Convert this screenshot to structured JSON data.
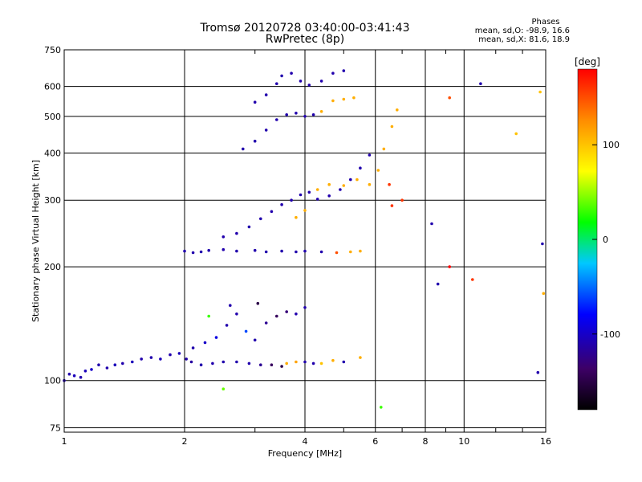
{
  "chart_data": {
    "type": "scatter",
    "title": "Tromsø 20120728 03:40:00-03:41:43",
    "subtitle": "RwPretec (8p)",
    "xlabel": "Frequency [MHz]",
    "ylabel": "Stationary phase Virtual Height [km]",
    "xscale": "log",
    "yscale": "log",
    "xlim": [
      1,
      16
    ],
    "ylim": [
      73,
      750
    ],
    "x_ticks": [
      1,
      2,
      4,
      6,
      8,
      10,
      16
    ],
    "x_minor_ticks": [
      3,
      5,
      7,
      9,
      12,
      14
    ],
    "y_ticks": [
      75,
      100,
      200,
      300,
      400,
      500,
      600,
      750
    ],
    "grid": true,
    "colorbar": {
      "label": "[deg]",
      "min": -180,
      "max": 180,
      "ticks": [
        100,
        0,
        -100
      ],
      "colors": [
        "#000000",
        "#3d0066",
        "#0000ff",
        "#00c8ff",
        "#00ff00",
        "#ffff00",
        "#ff8c00",
        "#ff0000"
      ]
    },
    "phases": {
      "heading": "Phases",
      "line_o": "mean, sd,O: -98.9, 16.6",
      "line_x": "mean, sd,X:  81.6, 18.9"
    },
    "series": [
      {
        "points": [
          [
            1.0,
            100,
            -110
          ],
          [
            1.03,
            104,
            -110
          ],
          [
            1.06,
            103,
            -105
          ],
          [
            1.1,
            102,
            -110
          ],
          [
            1.13,
            106,
            -105
          ],
          [
            1.17,
            107,
            -100
          ],
          [
            1.22,
            110,
            -110
          ],
          [
            1.28,
            108,
            -110
          ],
          [
            1.34,
            110,
            -105
          ],
          [
            1.4,
            111,
            -110
          ],
          [
            1.48,
            112,
            -105
          ],
          [
            1.56,
            114,
            -110
          ],
          [
            1.65,
            115,
            -110
          ],
          [
            1.74,
            114,
            -105
          ],
          [
            1.84,
            117,
            -110
          ],
          [
            1.94,
            118,
            -105
          ],
          [
            2.02,
            114,
            -110
          ],
          [
            2.08,
            112,
            -115
          ],
          [
            2.2,
            110,
            -110
          ],
          [
            2.35,
            111,
            -110
          ],
          [
            2.5,
            112,
            -110
          ],
          [
            2.7,
            112,
            -110
          ],
          [
            2.9,
            111,
            -110
          ],
          [
            3.1,
            110,
            -120
          ],
          [
            3.3,
            110,
            -140
          ],
          [
            3.5,
            109,
            -150
          ],
          [
            3.6,
            111,
            110
          ],
          [
            3.8,
            112,
            115
          ],
          [
            4.0,
            112,
            -110
          ],
          [
            4.2,
            111,
            -110
          ],
          [
            4.4,
            111,
            100
          ],
          [
            4.7,
            113,
            110
          ],
          [
            5.0,
            112,
            -110
          ],
          [
            5.5,
            115,
            110
          ]
        ]
      },
      {
        "points": [
          [
            2.1,
            122,
            -110
          ],
          [
            2.25,
            126,
            -100
          ],
          [
            2.4,
            130,
            -90
          ],
          [
            2.55,
            140,
            -110
          ],
          [
            2.7,
            150,
            -110
          ],
          [
            2.85,
            135,
            -60
          ],
          [
            3.0,
            128,
            -110
          ],
          [
            3.2,
            142,
            -120
          ],
          [
            3.4,
            148,
            -140
          ],
          [
            3.6,
            152,
            -130
          ],
          [
            3.8,
            150,
            -110
          ],
          [
            4.0,
            156,
            -110
          ],
          [
            2.3,
            148,
            30
          ],
          [
            2.6,
            158,
            -110
          ],
          [
            3.05,
            160,
            -150
          ]
        ]
      },
      {
        "points": [
          [
            2.0,
            220,
            -110
          ],
          [
            2.1,
            218,
            -110
          ],
          [
            2.2,
            219,
            -110
          ],
          [
            2.3,
            221,
            -110
          ],
          [
            2.5,
            222,
            -110
          ],
          [
            2.7,
            220,
            -110
          ],
          [
            3.0,
            221,
            -110
          ],
          [
            3.2,
            219,
            -110
          ],
          [
            3.5,
            220,
            -110
          ],
          [
            3.8,
            219,
            -110
          ],
          [
            4.0,
            220,
            -110
          ],
          [
            4.4,
            219,
            -110
          ],
          [
            4.8,
            218,
            150
          ],
          [
            5.2,
            219,
            110
          ],
          [
            5.5,
            220,
            110
          ]
        ]
      },
      {
        "points": [
          [
            2.5,
            240,
            -110
          ],
          [
            2.7,
            245,
            -110
          ],
          [
            2.9,
            255,
            -110
          ],
          [
            3.1,
            268,
            -110
          ],
          [
            3.3,
            280,
            -110
          ],
          [
            3.5,
            292,
            -110
          ],
          [
            3.7,
            300,
            -110
          ],
          [
            3.9,
            310,
            -110
          ],
          [
            4.1,
            315,
            -110
          ],
          [
            4.3,
            302,
            -110
          ],
          [
            4.6,
            308,
            -110
          ],
          [
            4.9,
            320,
            -110
          ],
          [
            5.2,
            340,
            -110
          ],
          [
            5.5,
            365,
            -110
          ],
          [
            5.8,
            395,
            -110
          ],
          [
            3.8,
            270,
            110
          ],
          [
            4.0,
            282,
            110
          ],
          [
            4.3,
            320,
            110
          ],
          [
            4.6,
            330,
            110
          ],
          [
            5.0,
            328,
            110
          ],
          [
            5.4,
            340,
            110
          ],
          [
            5.8,
            330,
            110
          ],
          [
            6.1,
            360,
            110
          ],
          [
            6.3,
            410,
            110
          ],
          [
            6.6,
            470,
            110
          ],
          [
            6.8,
            520,
            110
          ]
        ]
      },
      {
        "points": [
          [
            2.8,
            410,
            -110
          ],
          [
            3.0,
            430,
            -110
          ],
          [
            3.2,
            460,
            -110
          ],
          [
            3.4,
            490,
            -110
          ],
          [
            3.6,
            505,
            -110
          ],
          [
            3.8,
            510,
            -110
          ],
          [
            4.0,
            500,
            -110
          ],
          [
            4.2,
            505,
            -110
          ],
          [
            4.4,
            515,
            110
          ],
          [
            4.7,
            550,
            110
          ],
          [
            5.0,
            555,
            110
          ],
          [
            5.3,
            560,
            110
          ]
        ]
      },
      {
        "points": [
          [
            3.0,
            545,
            -110
          ],
          [
            3.2,
            570,
            -110
          ],
          [
            3.4,
            610,
            -110
          ],
          [
            3.5,
            640,
            -110
          ],
          [
            3.7,
            650,
            -110
          ],
          [
            3.9,
            620,
            -110
          ],
          [
            4.1,
            605,
            -110
          ],
          [
            4.4,
            620,
            -110
          ],
          [
            4.7,
            650,
            -110
          ],
          [
            5.0,
            660,
            -110
          ],
          [
            9.2,
            560,
            150
          ],
          [
            11.0,
            610,
            -110
          ],
          [
            15.5,
            580,
            100
          ]
        ]
      },
      {
        "points": [
          [
            6.5,
            330,
            160
          ],
          [
            6.6,
            290,
            160
          ],
          [
            7.0,
            300,
            160
          ],
          [
            8.3,
            260,
            -110
          ],
          [
            8.6,
            180,
            -110
          ],
          [
            9.2,
            200,
            180
          ],
          [
            10.5,
            185,
            160
          ],
          [
            13.5,
            450,
            100
          ],
          [
            15.3,
            105,
            -110
          ],
          [
            15.7,
            230,
            -110
          ],
          [
            15.8,
            170,
            110
          ],
          [
            6.2,
            85,
            30
          ],
          [
            2.5,
            95,
            40
          ]
        ]
      }
    ]
  }
}
